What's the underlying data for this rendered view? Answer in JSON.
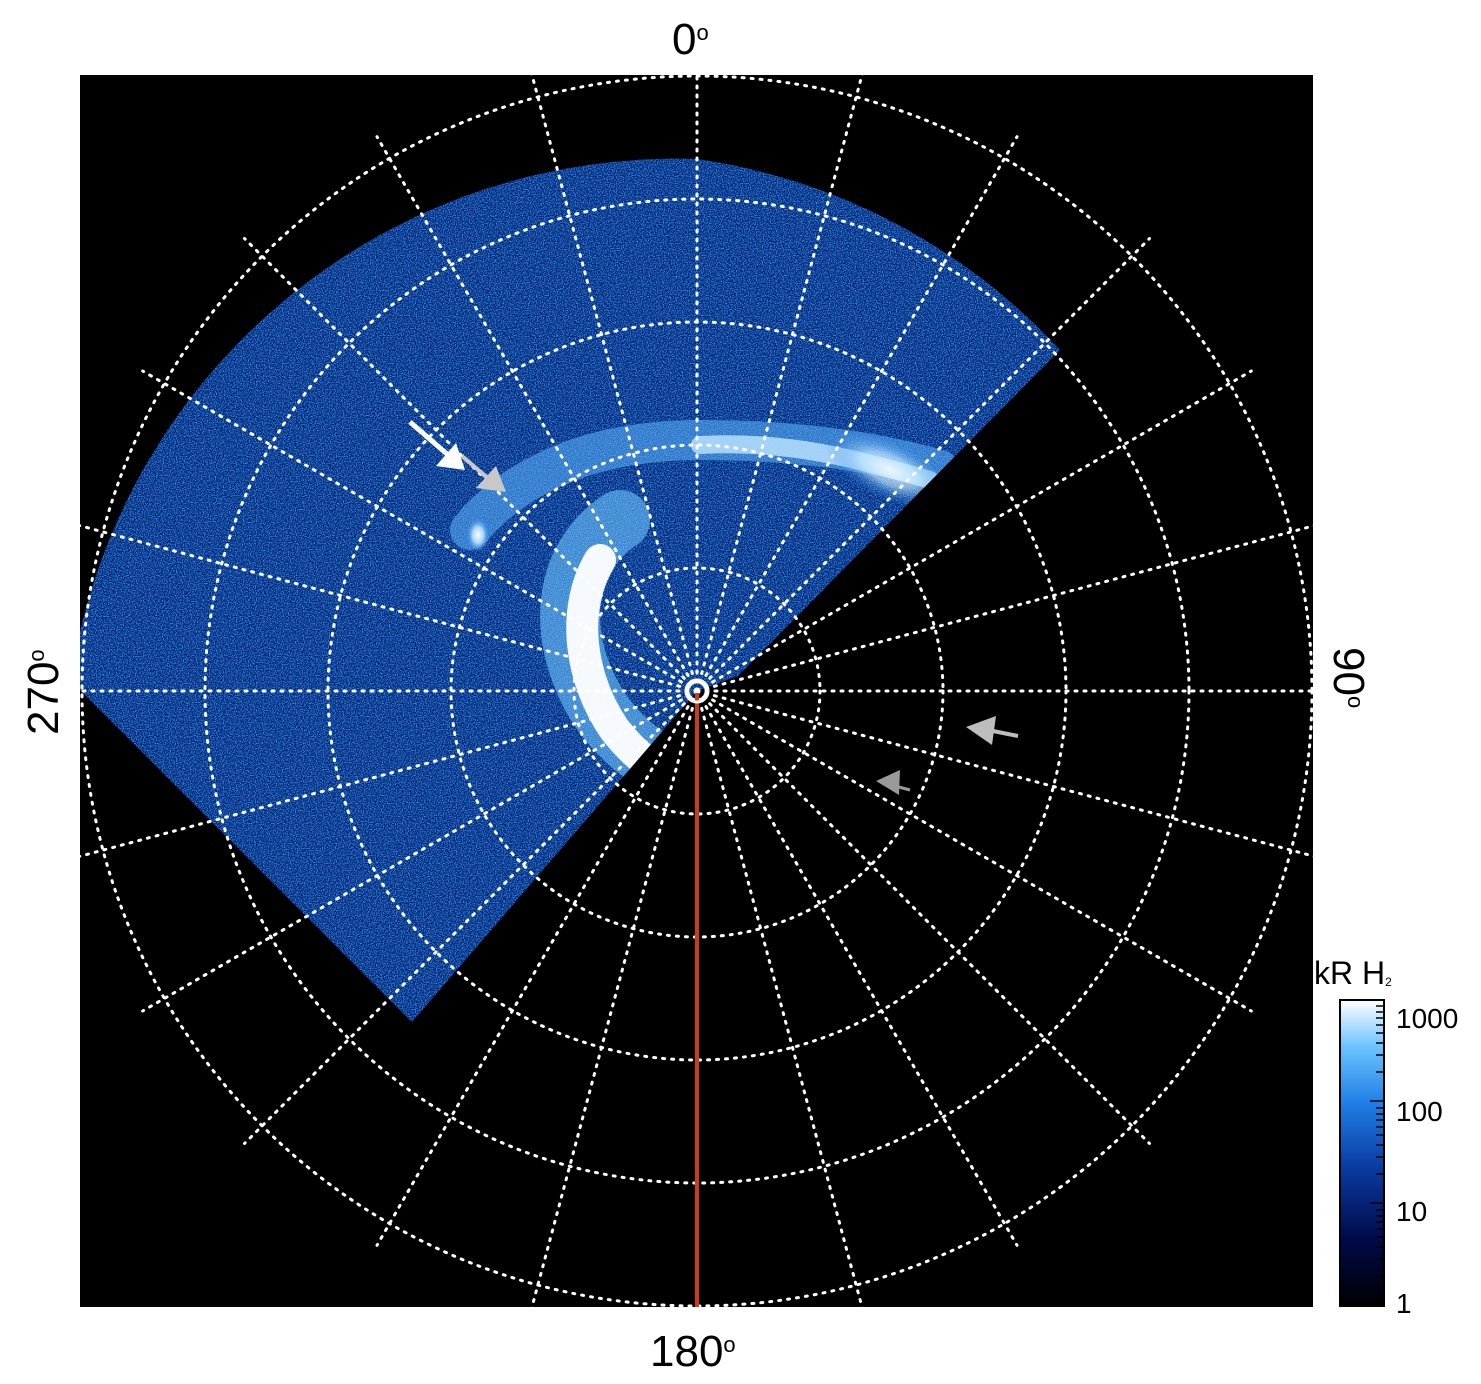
{
  "panel": {
    "background": "#000000",
    "grid_color": "#ffffff",
    "meridian_color": "#d23a14"
  },
  "axis_labels": {
    "top": "0",
    "right": "90",
    "bottom": "180",
    "left": "270",
    "degree_symbol": "o"
  },
  "colorbar": {
    "title": "kR H",
    "title_subscript": "2",
    "scale": "log",
    "range": [
      1,
      1000
    ],
    "ticks": [
      "1",
      "10",
      "100",
      "1000"
    ],
    "colors": [
      "#000000",
      "#000a4a",
      "#0a3aa0",
      "#1e7ee6",
      "#6ec4ff",
      "#ffffff"
    ]
  },
  "annotations": [
    {
      "name": "white-arrow",
      "color": "#ffffff"
    },
    {
      "name": "light-gray-arrow",
      "color": "#c8c8c8"
    },
    {
      "name": "gray-arrow",
      "color": "#bdbdbd"
    },
    {
      "name": "dark-gray-arrow",
      "color": "#9a9a9a"
    }
  ]
}
